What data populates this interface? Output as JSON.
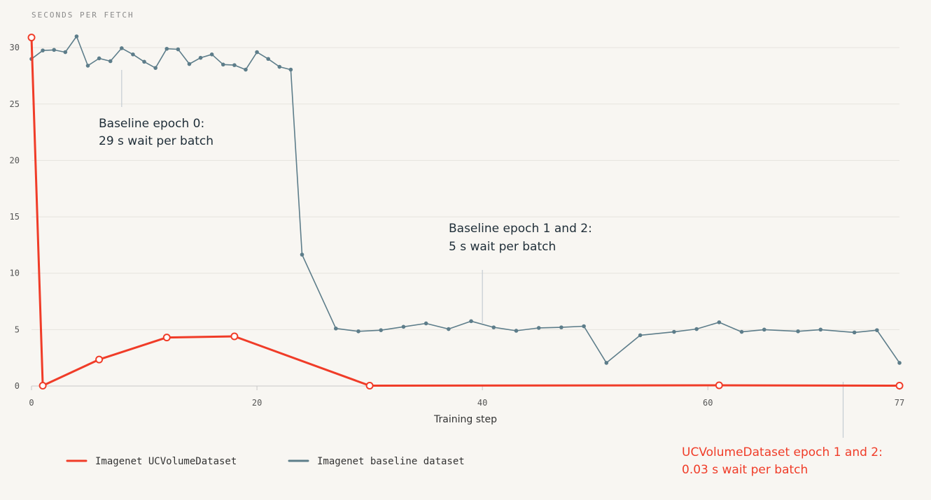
{
  "chart_data": {
    "type": "line",
    "ylabel": "SECONDS PER FETCH",
    "xlabel": "Training step",
    "xlim": [
      0,
      77
    ],
    "ylim": [
      0,
      31
    ],
    "x_ticks": [
      0,
      20,
      40,
      60,
      77
    ],
    "y_ticks": [
      0,
      5,
      10,
      15,
      20,
      25,
      30
    ],
    "grid": "horizontal",
    "legend_position": "bottom-left",
    "series": [
      {
        "name": "Imagenet UCVolumeDataset",
        "color": "#f03c28",
        "marker": "hollow-circle",
        "x": [
          0,
          1,
          6,
          12,
          18,
          30,
          61,
          77
        ],
        "y": [
          30.9,
          0.03,
          2.35,
          4.3,
          4.4,
          0.03,
          0.06,
          0.03
        ]
      },
      {
        "name": "Imagenet baseline dataset",
        "color": "#5d7d8a",
        "marker": "dot",
        "x": [
          0,
          1,
          2,
          3,
          4,
          5,
          6,
          7,
          8,
          9,
          10,
          11,
          12,
          13,
          14,
          15,
          16,
          17,
          18,
          19,
          20,
          21,
          22,
          23,
          24,
          27,
          29,
          31,
          33,
          35,
          37,
          39,
          41,
          43,
          45,
          47,
          49,
          51,
          54,
          57,
          59,
          61,
          63,
          65,
          68,
          70,
          73,
          75,
          77
        ],
        "y": [
          29.0,
          29.75,
          29.8,
          29.6,
          31.0,
          28.4,
          29.05,
          28.8,
          29.95,
          29.4,
          28.75,
          28.2,
          29.9,
          29.85,
          28.55,
          29.1,
          29.4,
          28.5,
          28.45,
          28.05,
          29.6,
          29.0,
          28.3,
          28.05,
          11.65,
          5.1,
          4.85,
          4.95,
          5.25,
          5.55,
          5.05,
          5.75,
          5.2,
          4.9,
          5.15,
          5.2,
          5.3,
          2.05,
          4.5,
          4.8,
          5.05,
          5.65,
          4.8,
          5.0,
          4.85,
          5.0,
          4.75,
          4.95,
          2.05
        ]
      }
    ],
    "annotations": [
      {
        "line1": "Baseline epoch 0:",
        "line2": "29 s wait per batch",
        "color": "#1f2e38",
        "pointer_x": 8
      },
      {
        "line1": "Baseline epoch 1 and 2:",
        "line2": "5 s wait per batch",
        "color": "#1f2e38",
        "pointer_x": 40
      },
      {
        "line1": "UCVolumeDataset epoch 1 and 2:",
        "line2": "0.03 s wait per batch",
        "color": "#f03c28",
        "pointer_x": 72
      }
    ]
  }
}
